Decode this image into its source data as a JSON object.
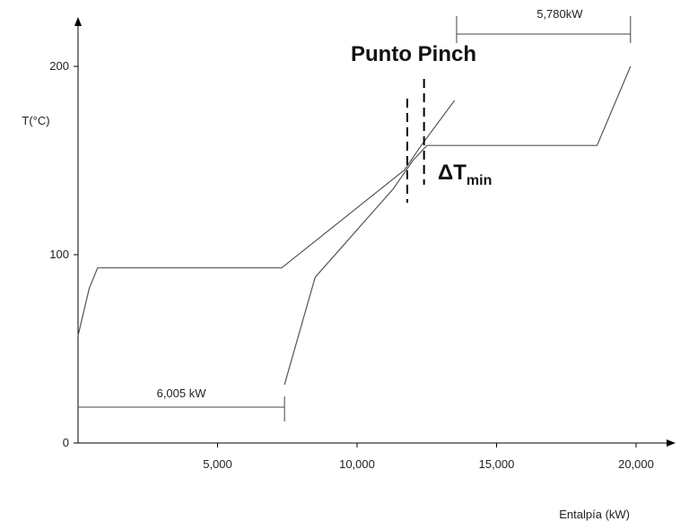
{
  "chart_data": {
    "type": "line",
    "title": "",
    "xlabel": "Entalpía (kW)",
    "ylabel": "T(°C)",
    "xlim": [
      0,
      21500
    ],
    "ylim": [
      0,
      230
    ],
    "x_ticks": [
      5000,
      10000,
      15000,
      20000
    ],
    "x_tick_labels": [
      "5,000",
      "10,000",
      "15,000",
      "20,000"
    ],
    "y_ticks": [
      0,
      100,
      200
    ],
    "y_tick_labels": [
      "0",
      "100",
      "200"
    ],
    "grid": false,
    "series": [
      {
        "points": [
          [
            0,
            57
          ],
          [
            400,
            82
          ],
          [
            700,
            93
          ],
          [
            7300,
            93
          ],
          [
            11700,
            145
          ],
          [
            12300,
            158
          ],
          [
            13500,
            182
          ]
        ]
      },
      {
        "points": [
          [
            7400,
            31
          ],
          [
            8500,
            88
          ],
          [
            11300,
            135
          ],
          [
            12000,
            150
          ],
          [
            12500,
            158
          ],
          [
            18600,
            158
          ],
          [
            19800,
            200
          ]
        ]
      }
    ],
    "annotations": {
      "pinch_label": "Punto Pinch",
      "delta_t_symbol": "ΔT",
      "delta_t_subscript": "min",
      "cold_utility_label": "6,005 kW",
      "hot_utility_label": "5,780kW",
      "cold_utility_range": [
        0,
        7400
      ],
      "hot_utility_range": [
        13600,
        19800
      ],
      "pinch_lines_x": [
        11800,
        12400
      ]
    }
  }
}
